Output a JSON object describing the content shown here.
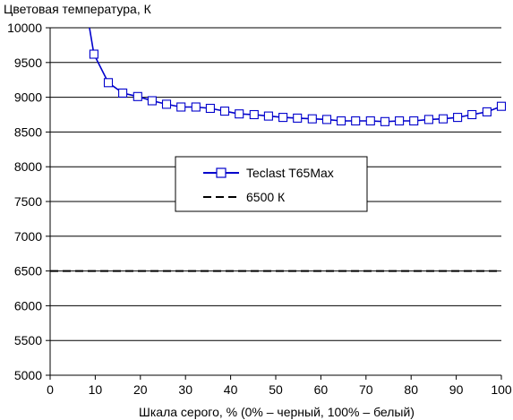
{
  "chart_data": {
    "type": "line",
    "title": "",
    "ylabel": "Цветовая температура, К",
    "xlabel": "Шкала серого, % (0% – черный, 100% – белый)",
    "xlim": [
      0,
      100
    ],
    "ylim": [
      5000,
      10000
    ],
    "xticks": [
      "0",
      "10",
      "20",
      "30",
      "40",
      "50",
      "60",
      "70",
      "80",
      "90",
      "100"
    ],
    "yticks": [
      "5000",
      "5500",
      "6000",
      "6500",
      "7000",
      "7500",
      "8000",
      "8500",
      "9000",
      "9500",
      "10000"
    ],
    "grid": "horizontal",
    "legend_position": "center-left",
    "series": [
      {
        "name": "Teclast T65Max",
        "color": "#0000cc",
        "marker": "square",
        "line_style": "solid",
        "x": [
          8.6,
          9.7,
          12.9,
          16.1,
          19.4,
          22.6,
          25.8,
          29.0,
          32.3,
          35.5,
          38.7,
          41.9,
          45.2,
          48.4,
          51.6,
          54.8,
          58.1,
          61.3,
          64.5,
          67.7,
          71.0,
          74.2,
          77.4,
          80.6,
          83.9,
          87.1,
          90.3,
          93.5,
          96.8,
          100
        ],
        "y": [
          10050,
          9620,
          9210,
          9060,
          9010,
          8950,
          8900,
          8860,
          8860,
          8840,
          8800,
          8760,
          8750,
          8730,
          8710,
          8700,
          8690,
          8680,
          8660,
          8660,
          8660,
          8650,
          8660,
          8660,
          8680,
          8690,
          8710,
          8750,
          8790,
          8870
        ],
        "marker_x_start": 9.7
      },
      {
        "name": "6500 К",
        "color": "#000000",
        "line_style": "dashed",
        "x": [
          0,
          100
        ],
        "y": [
          6500,
          6500
        ]
      }
    ]
  }
}
